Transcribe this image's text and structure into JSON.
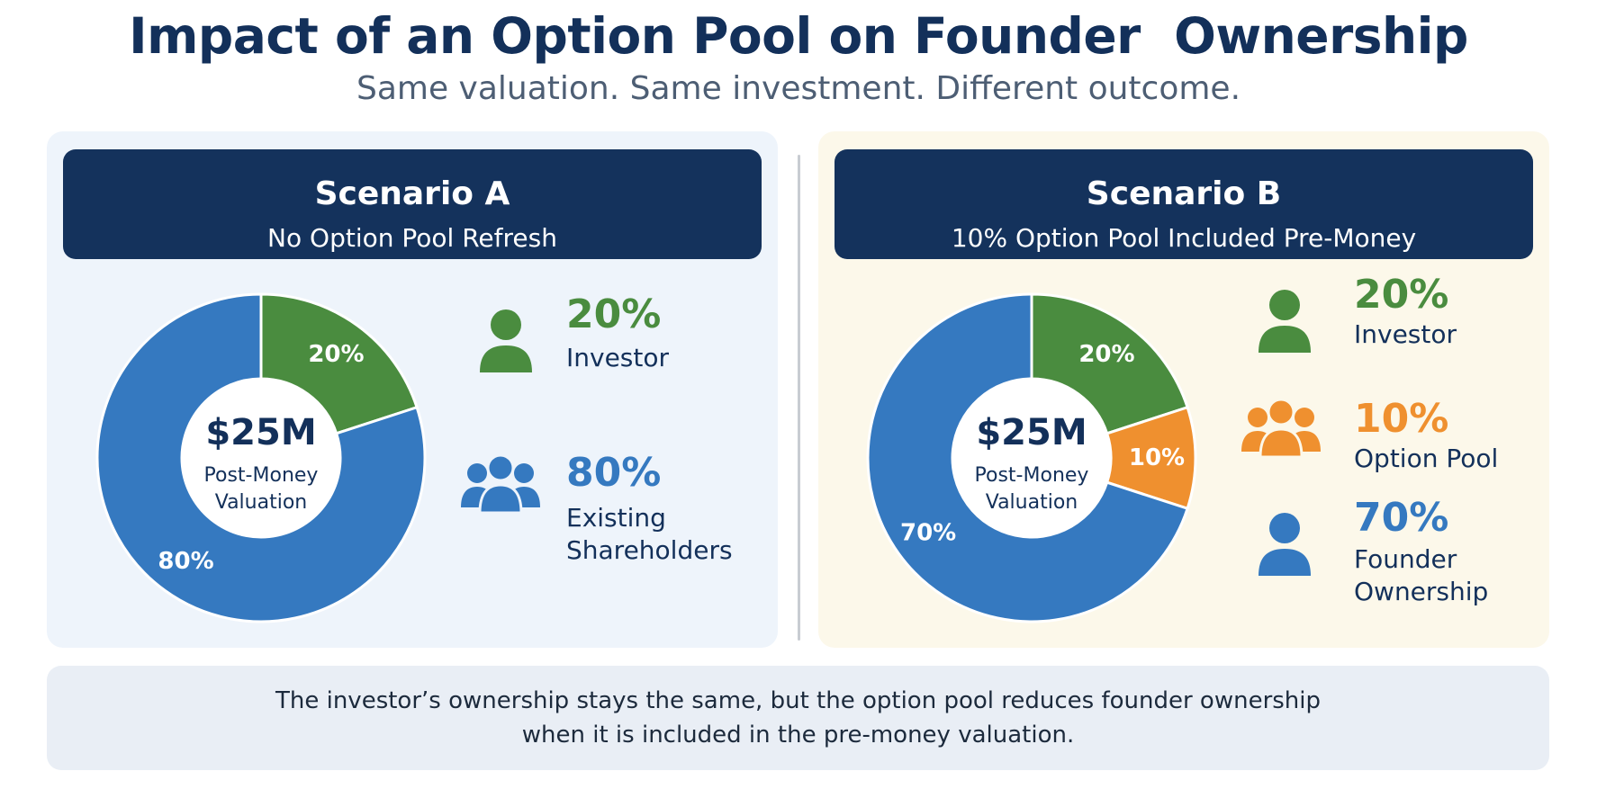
{
  "header": {
    "title": "Impact of an Option Pool on Founder  Ownership",
    "subtitle": "Same valuation. Same investment. Different outcome."
  },
  "colors": {
    "navy": "#14325c",
    "blue": "#3579c0",
    "green": "#4a8c3f",
    "orange": "#ef902f"
  },
  "scenario_a": {
    "title": "Scenario A",
    "subtitle": "No Option Pool Refresh",
    "center_value": "$25M",
    "center_label_line1": "Post-Money",
    "center_label_line2": "Valuation",
    "legend": [
      {
        "pct": "20%",
        "label": "Investor",
        "icon": "person-icon"
      },
      {
        "pct": "80%",
        "label": "Existing\nShareholders",
        "icon": "group-icon"
      }
    ]
  },
  "scenario_b": {
    "title": "Scenario B",
    "subtitle": "10% Option Pool Included Pre-Money",
    "center_value": "$25M",
    "center_label_line1": "Post-Money",
    "center_label_line2": "Valuation",
    "legend": [
      {
        "pct": "20%",
        "label": "Investor",
        "icon": "person-icon"
      },
      {
        "pct": "10%",
        "label": "Option Pool",
        "icon": "group-icon"
      },
      {
        "pct": "70%",
        "label": "Founder\nOwnership",
        "icon": "person-icon"
      }
    ]
  },
  "footer": {
    "line1": "The investor’s ownership stays the same, but the option pool reduces founder ownership",
    "line2": "when it is included in the pre-money valuation."
  },
  "chart_data": [
    {
      "type": "pie",
      "title": "Scenario A",
      "categories": [
        "Investor",
        "Existing Shareholders"
      ],
      "values": [
        20,
        80
      ],
      "labels": [
        "20%",
        "80%"
      ],
      "colors": [
        "#4a8c3f",
        "#3579c0"
      ],
      "center_text": "$25M Post-Money Valuation"
    },
    {
      "type": "pie",
      "title": "Scenario B",
      "categories": [
        "Investor",
        "Option Pool",
        "Founder Ownership"
      ],
      "values": [
        20,
        10,
        70
      ],
      "labels": [
        "20%",
        "10%",
        "70%"
      ],
      "colors": [
        "#4a8c3f",
        "#ef902f",
        "#3579c0"
      ],
      "center_text": "$25M Post-Money Valuation"
    }
  ]
}
